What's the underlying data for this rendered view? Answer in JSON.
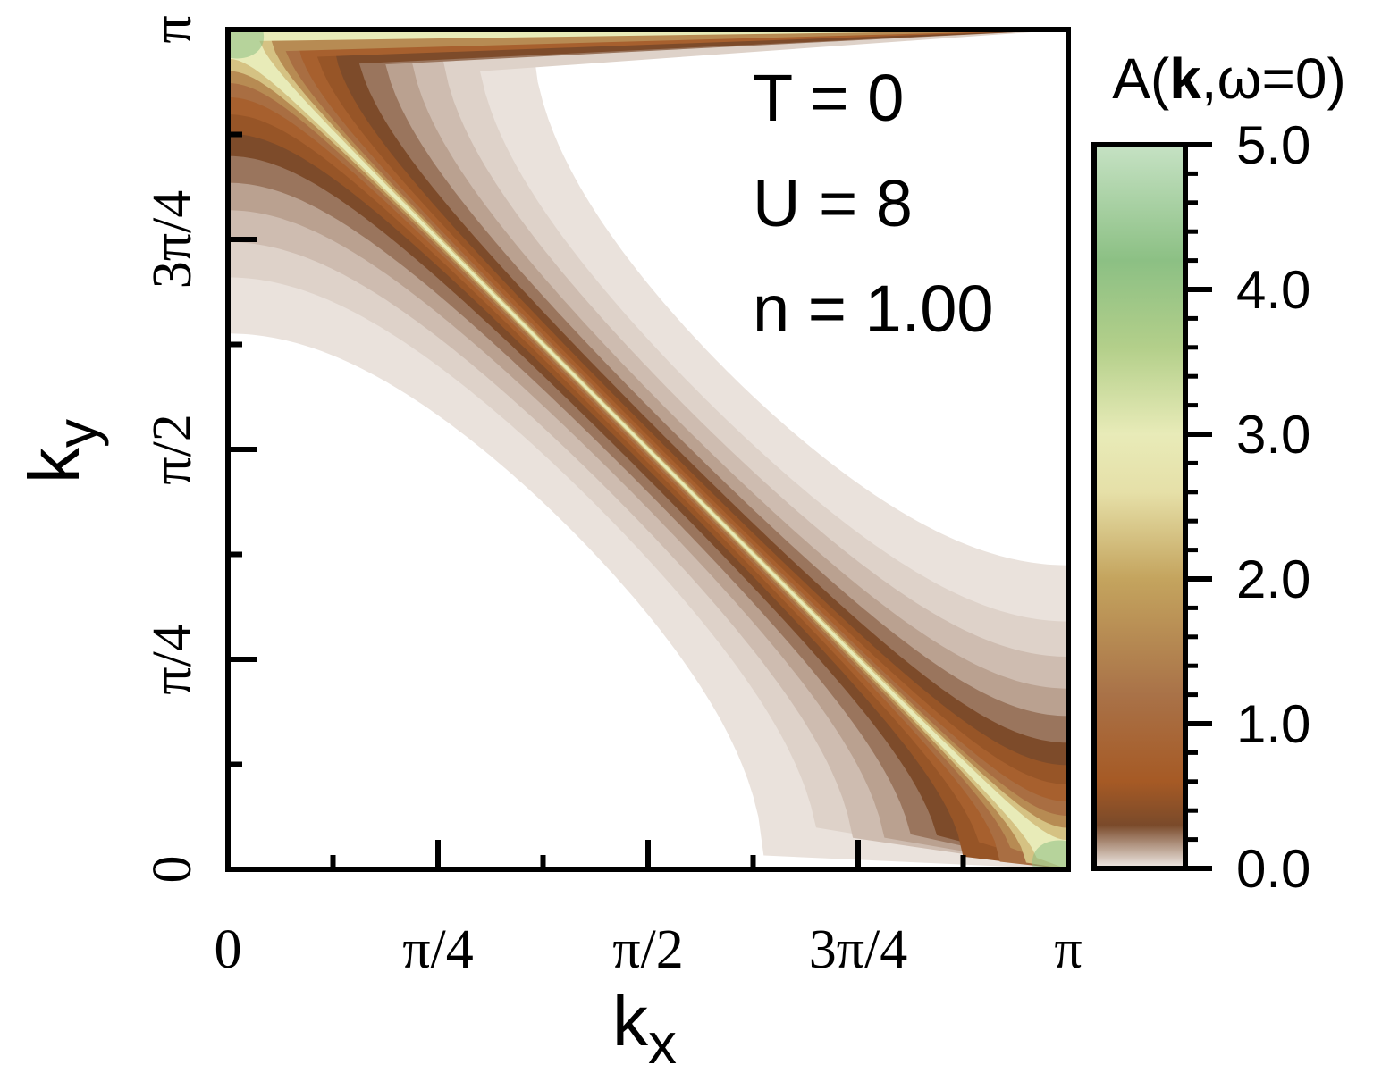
{
  "chart_data": {
    "type": "heatmap",
    "title": "",
    "xlabel": "k_x",
    "ylabel": "k_y",
    "x_range": [
      0,
      3.14159
    ],
    "y_range": [
      0,
      3.14159
    ],
    "x_ticks": [
      {
        "value": 0,
        "label": "0"
      },
      {
        "value": 0.7854,
        "label": "π/4"
      },
      {
        "value": 1.5708,
        "label": "π/2"
      },
      {
        "value": 2.3562,
        "label": "3π/4"
      },
      {
        "value": 3.1416,
        "label": "π"
      }
    ],
    "y_ticks": [
      {
        "value": 0,
        "label": "0"
      },
      {
        "value": 0.7854,
        "label": "π/4"
      },
      {
        "value": 1.5708,
        "label": "π/2"
      },
      {
        "value": 2.3562,
        "label": "3π/4"
      },
      {
        "value": 3.1416,
        "label": "π"
      }
    ],
    "annotations": [
      "T = 0",
      "U = 8",
      "n = 1.00"
    ],
    "colorbar": {
      "title_prefix": "A(",
      "title_bold": "k",
      "title_suffix": ",ω=0)",
      "range": [
        0,
        5
      ],
      "ticks": [
        {
          "value": 0,
          "label": "0.0"
        },
        {
          "value": 1,
          "label": "1.0"
        },
        {
          "value": 2,
          "label": "2.0"
        },
        {
          "value": 3,
          "label": "3.0"
        },
        {
          "value": 4,
          "label": "4.0"
        },
        {
          "value": 5,
          "label": "5.0"
        }
      ],
      "colors": [
        {
          "value": 0.0,
          "color": "#f2ede9"
        },
        {
          "value": 0.3,
          "color": "#7a4a2a"
        },
        {
          "value": 0.6,
          "color": "#a65a25"
        },
        {
          "value": 1.2,
          "color": "#a97248"
        },
        {
          "value": 2.0,
          "color": "#c4a45e"
        },
        {
          "value": 2.6,
          "color": "#e6e0a8"
        },
        {
          "value": 3.0,
          "color": "#e8ebb8"
        },
        {
          "value": 3.6,
          "color": "#b3cf8a"
        },
        {
          "value": 4.2,
          "color": "#8cc084"
        },
        {
          "value": 5.0,
          "color": "#c6e2c4"
        }
      ]
    },
    "fermi_surface": {
      "description": "ridge of spectral weight along cos(kx)+cos(ky)=0",
      "points": [
        [
          0,
          3.1416
        ],
        [
          0.7854,
          2.3562
        ],
        [
          1.5708,
          1.5708
        ],
        [
          2.3562,
          0.7854
        ],
        [
          3.1416,
          0
        ]
      ]
    }
  }
}
